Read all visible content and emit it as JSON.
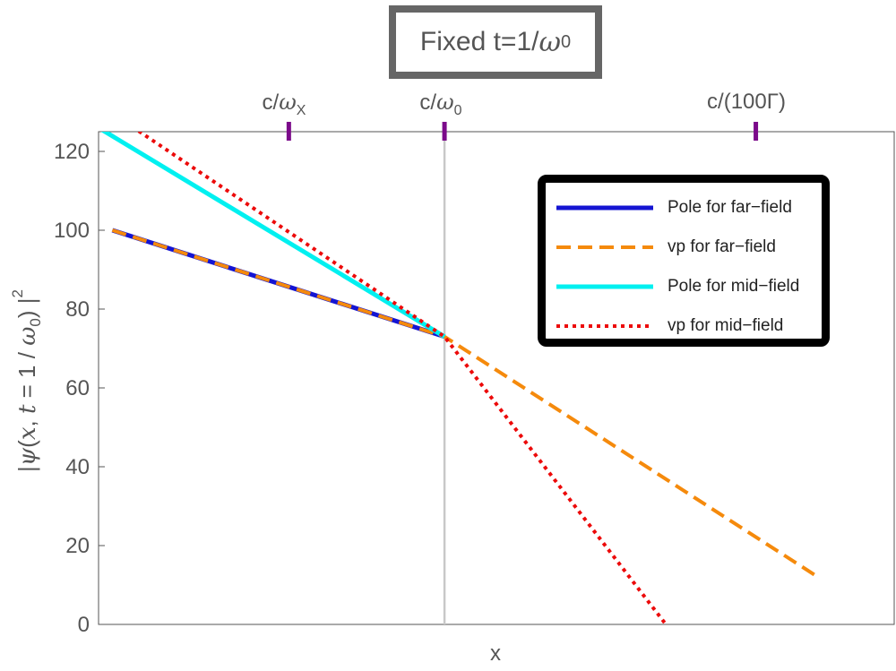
{
  "title": {
    "text": "Fixed t=1/",
    "symbol": "ω",
    "sub": "0"
  },
  "top_axis": [
    {
      "pre": "c/",
      "symbol": "ω",
      "sub": "X",
      "post": ""
    },
    {
      "pre": "c/",
      "symbol": "ω",
      "sub": "0",
      "post": ""
    },
    {
      "pre": "c/(100Γ)",
      "symbol": "",
      "sub": "",
      "post": ""
    }
  ],
  "ylabel": {
    "p1": "|",
    "psi": "ψ",
    "p2": "(",
    "x": "x",
    "p3": ", ",
    "t": "t",
    "p4": " = 1 / ",
    "omega": "ω",
    "sub": "0",
    "p5": ") |",
    "sup": "2"
  },
  "xlabel": "x",
  "legend": [
    {
      "label": "Pole for far−field"
    },
    {
      "label": "vp for far−field"
    },
    {
      "label": "Pole for mid−field"
    },
    {
      "label": "vp for mid−field"
    }
  ],
  "chart_data": {
    "type": "line",
    "xlabel": "x",
    "ylabel": "|ψ(x, t = 1 / ω0) |^2",
    "xlim": [
      -1,
      1.3
    ],
    "ylim": [
      0,
      125
    ],
    "yticks": [
      0,
      20,
      40,
      60,
      80,
      100,
      120
    ],
    "top_axis_marks": [
      -0.45,
      0,
      0.9
    ],
    "vertical_reference_line": 0,
    "grid": false,
    "legend_position": "top-right",
    "series": [
      {
        "name": "Pole for far−field",
        "color": "#1414d2",
        "style": "solid",
        "x": [
          -0.96,
          0
        ],
        "y": [
          100,
          73
        ]
      },
      {
        "name": "vp for far−field",
        "color": "#f58a0c",
        "style": "dashed",
        "x": [
          -0.96,
          0,
          1.08
        ],
        "y": [
          100,
          73,
          12
        ]
      },
      {
        "name": "Pole for mid−field",
        "color": "#00f0f0",
        "style": "solid",
        "x": [
          -1,
          0
        ],
        "y": [
          126,
          73
        ]
      },
      {
        "name": "vp for mid−field",
        "color": "#ec0a0a",
        "style": "dotted",
        "x": [
          -1,
          0,
          0.64
        ],
        "y": [
          132,
          73,
          0
        ]
      }
    ]
  }
}
